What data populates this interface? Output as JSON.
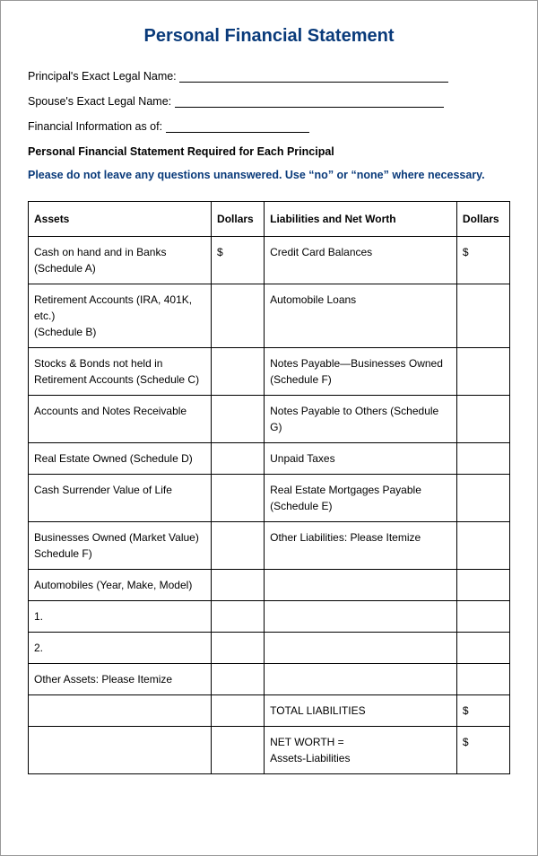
{
  "title": "Personal Financial Statement",
  "fields": {
    "principal_label": "Principal's Exact Legal Name:",
    "spouse_label": "Spouse's Exact Legal Name:",
    "asof_label": "Financial Information as of:"
  },
  "sub_heading": "Personal Financial Statement Required for Each Principal",
  "instruction": "Please do not leave any questions unanswered. Use “no” or “none” where necessary.",
  "colors": {
    "title": "#093a7a",
    "instruction": "#093a7a",
    "border": "#000000",
    "page_border": "#999999",
    "text": "#000000",
    "background": "#ffffff"
  },
  "typography": {
    "title_fontsize": 20,
    "body_fontsize": 12,
    "field_fontsize": 12.5,
    "title_weight": "bold"
  },
  "underline_widths": {
    "principal": 300,
    "spouse": 300,
    "asof": 160
  },
  "table": {
    "headers": {
      "assets": "Assets",
      "dollars1": "Dollars",
      "liabilities": "Liabilities and Net Worth",
      "dollars2": "Dollars"
    },
    "column_widths_pct": [
      38,
      11,
      40,
      11
    ],
    "rows": [
      {
        "asset": "Cash on hand and in Banks\n(Schedule A)",
        "d1": "$",
        "liab": "Credit Card Balances",
        "d2": "$",
        "tall": true
      },
      {
        "asset": "Retirement Accounts (IRA, 401K, etc.)\n(Schedule B)",
        "d1": "",
        "liab": "Automobile Loans",
        "d2": "",
        "tall": true
      },
      {
        "asset": "Stocks & Bonds not held in Retirement Accounts (Schedule C)",
        "d1": "",
        "liab": "Notes Payable—Businesses Owned (Schedule F)",
        "d2": "",
        "tall": true
      },
      {
        "asset": "Accounts and Notes Receivable",
        "d1": "",
        "liab": "Notes Payable to Others (Schedule G)",
        "d2": "",
        "tall": true
      },
      {
        "asset": "Real Estate Owned (Schedule D)",
        "d1": "",
        "liab": "Unpaid Taxes",
        "d2": "",
        "tall": false
      },
      {
        "asset": "Cash Surrender Value of Life",
        "d1": "",
        "liab": "Real Estate Mortgages Payable (Schedule E)",
        "d2": "",
        "tall": true
      },
      {
        "asset": "Businesses Owned (Market Value) Schedule F)",
        "d1": "",
        "liab": "Other Liabilities: Please Itemize",
        "d2": "",
        "tall": true
      },
      {
        "asset": "Automobiles (Year, Make, Model)",
        "d1": "",
        "liab": "",
        "d2": "",
        "tall": false
      },
      {
        "asset": "1.",
        "d1": "",
        "liab": "",
        "d2": "",
        "tall": false
      },
      {
        "asset": "2.",
        "d1": "",
        "liab": "",
        "d2": "",
        "tall": false
      },
      {
        "asset": "Other Assets: Please Itemize",
        "d1": "",
        "liab": "",
        "d2": "",
        "tall": false
      },
      {
        "asset": "",
        "d1": "",
        "liab": "TOTAL LIABILITIES",
        "d2": "$",
        "tall": false
      },
      {
        "asset": "",
        "d1": "",
        "liab": "NET WORTH  =\nAssets-Liabilities",
        "d2": "$",
        "tall": true
      }
    ]
  }
}
